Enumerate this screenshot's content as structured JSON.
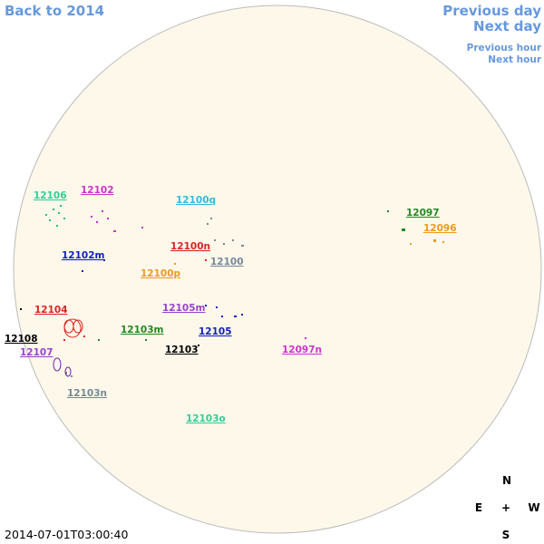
{
  "nav": {
    "back": "Back to 2014",
    "previous_day": "Previous day",
    "next_day": "Next day",
    "previous_hour": "Previous hour",
    "next_hour": "Next hour"
  },
  "regions": [
    "12106",
    "12102",
    "12100q",
    "12097",
    "12096",
    "12100n",
    "12102m",
    "12100",
    "12100p",
    "12104",
    "12105m",
    "12108",
    "12103m",
    "12105",
    "12103",
    "12107",
    "12097n",
    "12103n",
    "12103o"
  ],
  "compass": {
    "north": "N",
    "east": "E",
    "center": "+",
    "west": "W",
    "south": "S"
  },
  "timestamp": "2014-07-01T03:00:40"
}
